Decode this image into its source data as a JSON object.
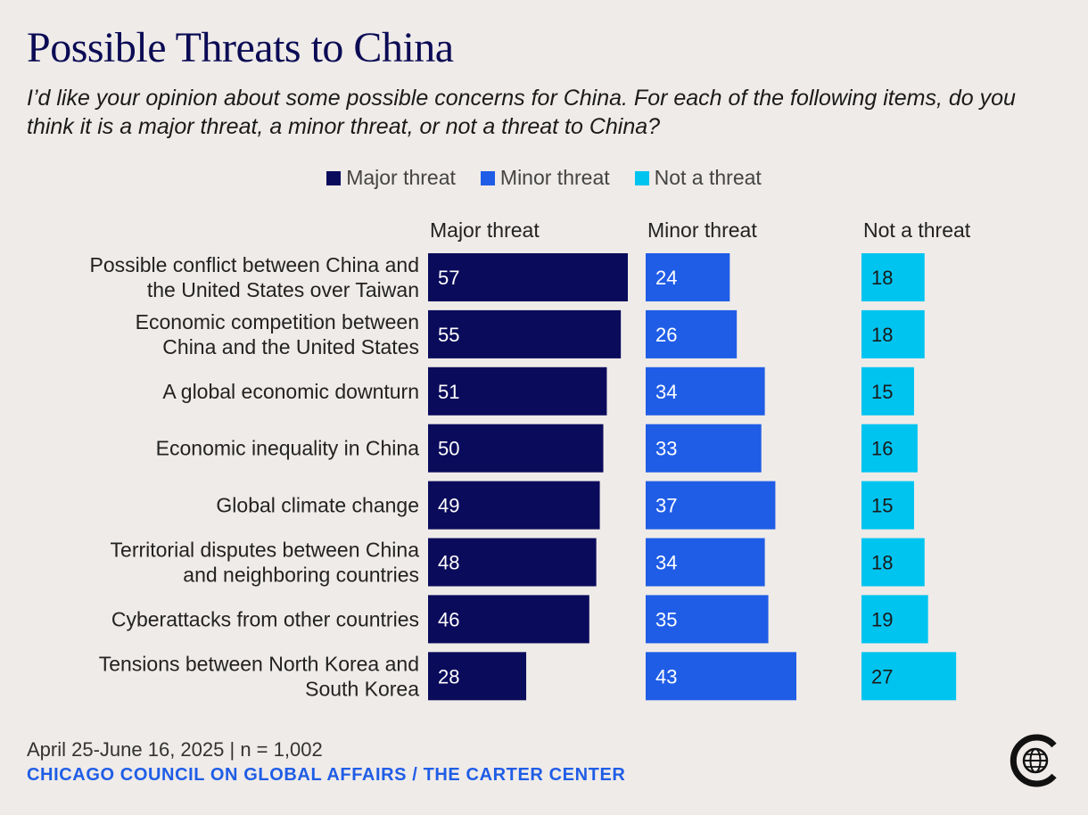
{
  "header": {
    "title": "Possible Threats to China",
    "subtitle": "I’d like your opinion about some possible concerns for China. For each of the following items, do you think it is a major threat, a minor threat, or not a threat to China?"
  },
  "footer": {
    "date_sample": "April 25-June 16, 2025 | n = 1,002",
    "source": "CHICAGO COUNCIL ON GLOBAL AFFAIRS / THE CARTER CENTER",
    "logo_icon": "globe-c-logo-icon"
  },
  "chart_data": {
    "type": "bar",
    "orientation": "horizontal",
    "legend_position": "top-center",
    "grid": false,
    "categories": [
      [
        "Possible conflict between China and",
        "the United States over Taiwan"
      ],
      [
        "Economic competition between",
        "China and the United States"
      ],
      [
        "A global economic downturn"
      ],
      [
        "Economic inequality in China"
      ],
      [
        "Global climate change"
      ],
      [
        "Territorial disputes between China",
        "and neighboring countries"
      ],
      [
        "Cyberattacks from other countries"
      ],
      [
        "Tensions between North Korea and",
        "South Korea"
      ]
    ],
    "series": [
      {
        "name": "Major threat",
        "color": "#0b0b5c",
        "values": [
          57,
          55,
          51,
          50,
          49,
          48,
          46,
          28
        ]
      },
      {
        "name": "Minor threat",
        "color": "#1f5de6",
        "values": [
          24,
          26,
          34,
          33,
          37,
          34,
          35,
          43
        ]
      },
      {
        "name": "Not a threat",
        "color": "#00c4f0",
        "values": [
          18,
          18,
          15,
          16,
          15,
          18,
          19,
          27
        ]
      }
    ]
  }
}
